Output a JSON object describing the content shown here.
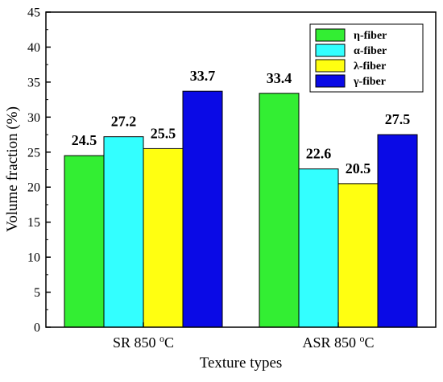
{
  "chart_data": {
    "type": "bar",
    "categories": [
      "SR 850",
      "ASR 850"
    ],
    "category_unit_superscript": "o",
    "category_unit_suffix": "C",
    "series": [
      {
        "name": "η-fiber",
        "values": [
          24.5,
          33.4
        ],
        "color": "#33ee33"
      },
      {
        "name": "α-fiber",
        "values": [
          27.2,
          22.6
        ],
        "color": "#33ffff"
      },
      {
        "name": "λ-fiber",
        "values": [
          25.5,
          20.5
        ],
        "color": "#ffff11"
      },
      {
        "name": "γ-fiber",
        "values": [
          33.7,
          27.5
        ],
        "color": "#0a0ae6"
      }
    ],
    "data_labels": [
      [
        "24.5",
        "33.4"
      ],
      [
        "27.2",
        "22.6"
      ],
      [
        "25.5",
        "20.5"
      ],
      [
        "33.7",
        "27.5"
      ]
    ],
    "xlabel": "Texture types",
    "ylabel": "Volume fraction (%)",
    "ylim": [
      0,
      45
    ],
    "yticks": [
      0,
      5,
      10,
      15,
      20,
      25,
      30,
      35,
      40,
      45
    ],
    "legend_position": "top-right",
    "grid": false
  }
}
